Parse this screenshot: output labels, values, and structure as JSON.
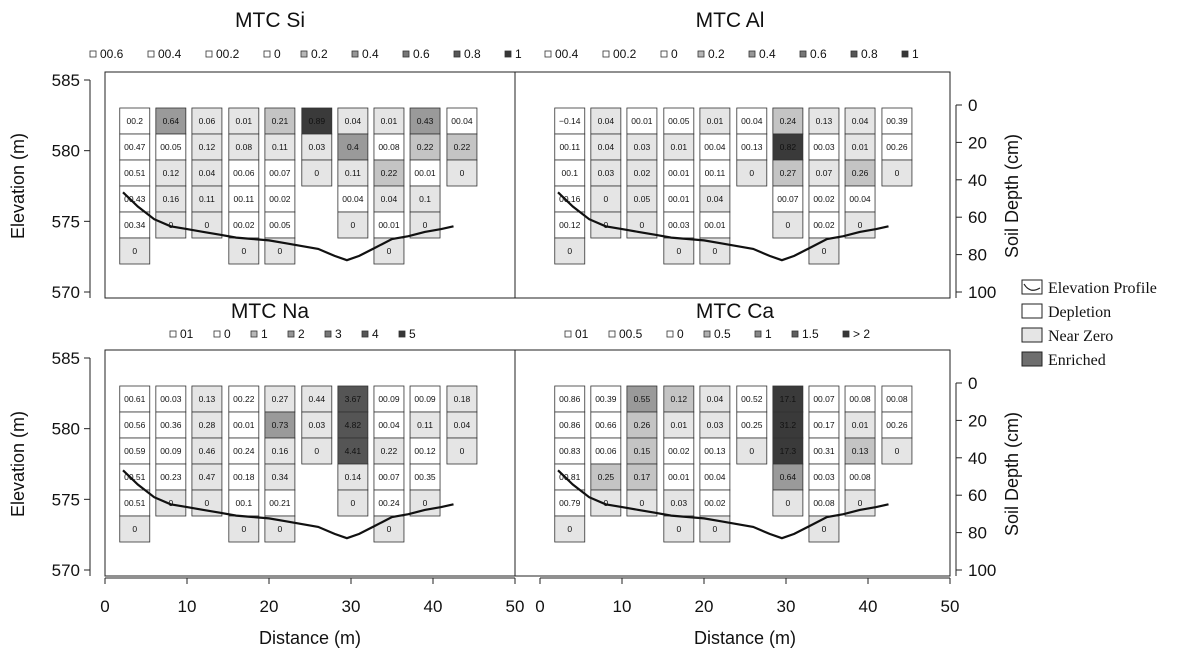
{
  "chart_data": [
    {
      "type": "heatmap",
      "title": "MTC Si",
      "xlabel": "",
      "ylabel": "Elevation (m)",
      "y2label": "",
      "xlim": [
        0,
        50
      ],
      "ylim": [
        570,
        585
      ],
      "depth_lim": [
        0,
        100
      ],
      "xticks": [],
      "yticks": [
        "570",
        "575",
        "580",
        "585"
      ],
      "depth_ticks": [],
      "legend": [
        "00.6",
        "00.4",
        "00.2",
        "0",
        "0.2",
        "0.4",
        "0.6",
        "0.8",
        "1"
      ],
      "columns": [
        {
          "x": 1.8,
          "values": [
            "00.2",
            "00.47",
            "00.51",
            "00.43",
            "00.34",
            "0"
          ]
        },
        {
          "x": 6.2,
          "values": [
            "0.64",
            "00.05",
            "0.12",
            "0.16",
            "0"
          ]
        },
        {
          "x": 10.6,
          "values": [
            "0.06",
            "0.12",
            "0.04",
            "0.11",
            "0"
          ]
        },
        {
          "x": 15.1,
          "values": [
            "0.01",
            "0.08",
            "00.06",
            "00.11",
            "00.02",
            "0"
          ]
        },
        {
          "x": 19.5,
          "values": [
            "0.21",
            "0.11",
            "00.07",
            "00.02",
            "00.05",
            "0"
          ]
        },
        {
          "x": 24.0,
          "values": [
            "0.89",
            "0.03",
            "0"
          ]
        },
        {
          "x": 28.4,
          "values": [
            "0.04",
            "0.4",
            "0.11",
            "00.04",
            "0"
          ]
        },
        {
          "x": 32.8,
          "values": [
            "0.01",
            "00.08",
            "0.22",
            "0.04",
            "00.01",
            "0"
          ]
        },
        {
          "x": 37.2,
          "values": [
            "0.43",
            "0.22",
            "00.01",
            "0.1",
            "0"
          ]
        },
        {
          "x": 41.7,
          "values": [
            "00.04",
            "0.22",
            "0"
          ]
        }
      ],
      "profile": [
        [
          2.2,
          577.9
        ],
        [
          4,
          576.9
        ],
        [
          6,
          576.0
        ],
        [
          8,
          575.5
        ],
        [
          10,
          575.3
        ],
        [
          12,
          575.1
        ],
        [
          14,
          574.9
        ],
        [
          16,
          574.7
        ],
        [
          18,
          574.6
        ],
        [
          20,
          574.5
        ],
        [
          22,
          574.3
        ],
        [
          24,
          574.1
        ],
        [
          26,
          573.9
        ],
        [
          28,
          573.4
        ],
        [
          29.5,
          573.1
        ],
        [
          31,
          573.4
        ],
        [
          33,
          574.0
        ],
        [
          35,
          574.6
        ],
        [
          37,
          574.8
        ],
        [
          39,
          575.1
        ],
        [
          41,
          575.3
        ],
        [
          42.5,
          575.5
        ]
      ]
    },
    {
      "type": "heatmap",
      "title": "MTC Al",
      "xlabel": "",
      "ylabel": "",
      "y2label": "Soil Depth (cm)",
      "xlim": [
        0,
        50
      ],
      "ylim": [
        570,
        585
      ],
      "depth_lim": [
        0,
        100
      ],
      "xticks": [],
      "yticks": [],
      "depth_ticks": [
        "0",
        "20",
        "40",
        "60",
        "80",
        "100"
      ],
      "legend": [
        "00.4",
        "00.2",
        "0",
        "0.2",
        "0.4",
        "0.6",
        "0.8",
        "1"
      ],
      "columns": [
        {
          "x": 1.8,
          "values": [
            "−0.14",
            "00.11",
            "00.1",
            "00.16",
            "00.12",
            "0"
          ]
        },
        {
          "x": 6.2,
          "values": [
            "0.04",
            "0.04",
            "0.03",
            "0",
            "0"
          ]
        },
        {
          "x": 10.6,
          "values": [
            "00.01",
            "0.03",
            "0.02",
            "0.05",
            "0"
          ]
        },
        {
          "x": 15.1,
          "values": [
            "00.05",
            "0.01",
            "00.01",
            "00.01",
            "00.03",
            "0"
          ]
        },
        {
          "x": 19.5,
          "values": [
            "0.01",
            "00.04",
            "00.11",
            "0.04",
            "00.01",
            "0"
          ]
        },
        {
          "x": 24.0,
          "values": [
            "00.04",
            "00.13",
            "0"
          ]
        },
        {
          "x": 28.4,
          "values": [
            "0.24",
            "0.82",
            "0.27",
            "00.07",
            "0"
          ]
        },
        {
          "x": 32.8,
          "values": [
            "0.13",
            "00.03",
            "0.07",
            "00.02",
            "00.02",
            "0"
          ]
        },
        {
          "x": 37.2,
          "values": [
            "0.04",
            "0.01",
            "0.26",
            "00.04",
            "0"
          ]
        },
        {
          "x": 41.7,
          "values": [
            "00.39",
            "00.26",
            "0"
          ]
        }
      ],
      "profile": [
        [
          2.2,
          577.9
        ],
        [
          4,
          576.9
        ],
        [
          6,
          576.0
        ],
        [
          8,
          575.5
        ],
        [
          10,
          575.3
        ],
        [
          12,
          575.1
        ],
        [
          14,
          574.9
        ],
        [
          16,
          574.7
        ],
        [
          18,
          574.6
        ],
        [
          20,
          574.5
        ],
        [
          22,
          574.3
        ],
        [
          24,
          574.1
        ],
        [
          26,
          573.9
        ],
        [
          28,
          573.4
        ],
        [
          29.5,
          573.1
        ],
        [
          31,
          573.4
        ],
        [
          33,
          574.0
        ],
        [
          35,
          574.6
        ],
        [
          37,
          574.8
        ],
        [
          39,
          575.1
        ],
        [
          41,
          575.3
        ],
        [
          42.5,
          575.5
        ]
      ]
    },
    {
      "type": "heatmap",
      "title": "MTC Na",
      "xlabel": "Distance (m)",
      "ylabel": "Elevation (m)",
      "y2label": "",
      "xlim": [
        0,
        50
      ],
      "ylim": [
        570,
        585
      ],
      "depth_lim": [
        0,
        100
      ],
      "xticks": [
        "0",
        "10",
        "20",
        "30",
        "40",
        "50"
      ],
      "yticks": [
        "570",
        "575",
        "580",
        "585"
      ],
      "depth_ticks": [],
      "legend": [
        "01",
        "0",
        "1",
        "2",
        "3",
        "4",
        "5"
      ],
      "columns": [
        {
          "x": 1.8,
          "values": [
            "00.61",
            "00.56",
            "00.59",
            "00.51",
            "00.51",
            "0"
          ]
        },
        {
          "x": 6.2,
          "values": [
            "00.03",
            "00.36",
            "00.09",
            "00.23",
            "0"
          ]
        },
        {
          "x": 10.6,
          "values": [
            "0.13",
            "0.28",
            "0.46",
            "0.47",
            "0"
          ]
        },
        {
          "x": 15.1,
          "values": [
            "00.22",
            "00.01",
            "00.24",
            "00.18",
            "00.1",
            "0"
          ]
        },
        {
          "x": 19.5,
          "values": [
            "0.27",
            "0.73",
            "0.16",
            "0.34",
            "00.21",
            "0"
          ]
        },
        {
          "x": 24.0,
          "values": [
            "0.44",
            "0.03",
            "0"
          ]
        },
        {
          "x": 28.4,
          "values": [
            "3.67",
            "4.82",
            "4.41",
            "0.14",
            "0"
          ]
        },
        {
          "x": 32.8,
          "values": [
            "00.09",
            "00.04",
            "0.22",
            "00.07",
            "00.24",
            "0"
          ]
        },
        {
          "x": 37.2,
          "values": [
            "00.09",
            "0.11",
            "00.12",
            "00.35",
            "0"
          ]
        },
        {
          "x": 41.7,
          "values": [
            "0.18",
            "0.04",
            "0"
          ]
        }
      ],
      "profile": [
        [
          2.2,
          577.9
        ],
        [
          4,
          576.9
        ],
        [
          6,
          576.0
        ],
        [
          8,
          575.5
        ],
        [
          10,
          575.3
        ],
        [
          12,
          575.1
        ],
        [
          14,
          574.9
        ],
        [
          16,
          574.7
        ],
        [
          18,
          574.6
        ],
        [
          20,
          574.5
        ],
        [
          22,
          574.3
        ],
        [
          24,
          574.1
        ],
        [
          26,
          573.9
        ],
        [
          28,
          573.4
        ],
        [
          29.5,
          573.1
        ],
        [
          31,
          573.4
        ],
        [
          33,
          574.0
        ],
        [
          35,
          574.6
        ],
        [
          37,
          574.8
        ],
        [
          39,
          575.1
        ],
        [
          41,
          575.3
        ],
        [
          42.5,
          575.5
        ]
      ]
    },
    {
      "type": "heatmap",
      "title": "MTC Ca",
      "xlabel": "Distance (m)",
      "ylabel": "",
      "y2label": "Soil Depth (cm)",
      "xlim": [
        0,
        50
      ],
      "ylim": [
        570,
        585
      ],
      "depth_lim": [
        0,
        100
      ],
      "xticks": [
        "0",
        "10",
        "20",
        "30",
        "40",
        "50"
      ],
      "yticks": [],
      "depth_ticks": [
        "0",
        "20",
        "40",
        "60",
        "80",
        "100"
      ],
      "legend": [
        "01",
        "00.5",
        "0",
        "0.5",
        "1",
        "1.5",
        "> 2"
      ],
      "columns": [
        {
          "x": 1.8,
          "values": [
            "00.86",
            "00.86",
            "00.83",
            "00.81",
            "00.79",
            "0"
          ]
        },
        {
          "x": 6.2,
          "values": [
            "00.39",
            "00.66",
            "00.06",
            "0.25",
            "0"
          ]
        },
        {
          "x": 10.6,
          "values": [
            "0.55",
            "0.26",
            "0.15",
            "0.17",
            "0"
          ]
        },
        {
          "x": 15.1,
          "values": [
            "0.12",
            "0.01",
            "00.02",
            "00.01",
            "0.03",
            "0"
          ]
        },
        {
          "x": 19.5,
          "values": [
            "0.04",
            "0.03",
            "00.13",
            "00.04",
            "00.02",
            "0"
          ]
        },
        {
          "x": 24.0,
          "values": [
            "00.52",
            "00.25",
            "0"
          ]
        },
        {
          "x": 28.4,
          "values": [
            "17.1",
            "31.2",
            "17.3",
            "0.64",
            "0"
          ]
        },
        {
          "x": 32.8,
          "values": [
            "00.07",
            "00.17",
            "00.31",
            "00.03",
            "00.08",
            "0"
          ]
        },
        {
          "x": 37.2,
          "values": [
            "00.08",
            "0.01",
            "0.13",
            "00.08",
            "0"
          ]
        },
        {
          "x": 41.7,
          "values": [
            "00.08",
            "00.26",
            "0"
          ]
        }
      ],
      "profile": [
        [
          2.2,
          577.9
        ],
        [
          4,
          576.9
        ],
        [
          6,
          576.0
        ],
        [
          8,
          575.5
        ],
        [
          10,
          575.3
        ],
        [
          12,
          575.1
        ],
        [
          14,
          574.9
        ],
        [
          16,
          574.7
        ],
        [
          18,
          574.6
        ],
        [
          20,
          574.5
        ],
        [
          22,
          574.3
        ],
        [
          24,
          574.1
        ],
        [
          26,
          573.9
        ],
        [
          28,
          573.4
        ],
        [
          29.5,
          573.1
        ],
        [
          31,
          573.4
        ],
        [
          33,
          574.0
        ],
        [
          35,
          574.6
        ],
        [
          37,
          574.8
        ],
        [
          39,
          575.1
        ],
        [
          41,
          575.3
        ],
        [
          42.5,
          575.5
        ]
      ]
    }
  ],
  "key": {
    "items": [
      {
        "label": "Elevation Profile",
        "kind": "profile"
      },
      {
        "label": "Depletion",
        "kind": "depletion"
      },
      {
        "label": "Near Zero",
        "kind": "near-zero"
      },
      {
        "label": "Enriched",
        "kind": "enriched"
      }
    ]
  },
  "colors": {
    "depletion": "#ffffff",
    "near_zero": "#e5e5e5",
    "enriched_low": "#c4c4c4",
    "enriched_mid": "#9a9a9a",
    "enriched_high": "#555555",
    "enriched_max": "#3a3a3a",
    "line": "#111111"
  }
}
